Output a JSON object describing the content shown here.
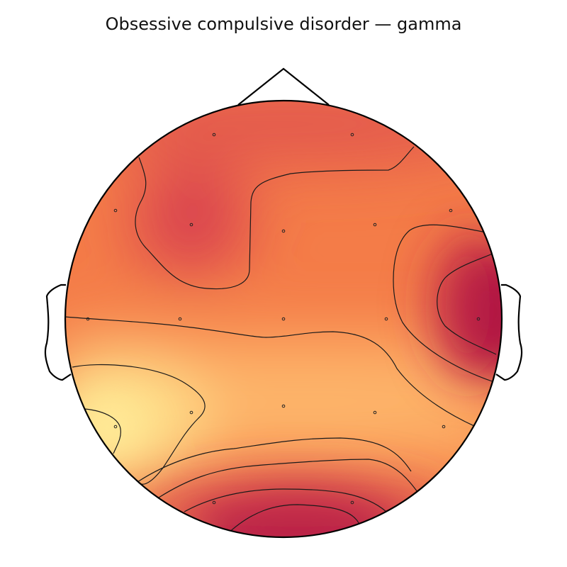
{
  "title": "Obsessive compulsive disorder — gamma",
  "colormap": {
    "name": "spectral-warm",
    "stops": [
      "#9e0142",
      "#d53e4f",
      "#f46d43",
      "#fdae61",
      "#fee08b"
    ]
  },
  "head_outline_color": "#000000",
  "contour_color": "#1a1a1a",
  "sensor_marker_color": "#222222"
}
